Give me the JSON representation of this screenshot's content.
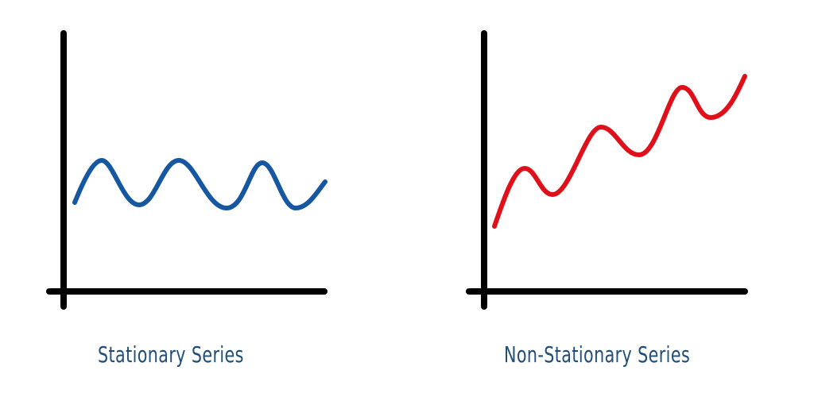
{
  "diagrams": [
    {
      "caption": "Stationary Series",
      "curve_color": "#1557a0",
      "caption_color": "#1f4e79",
      "trend": "flat oscillation"
    },
    {
      "caption": "Non-Stationary Series",
      "curve_color": "#e0101a",
      "caption_color": "#1f4e79",
      "trend": "rising oscillation"
    }
  ]
}
